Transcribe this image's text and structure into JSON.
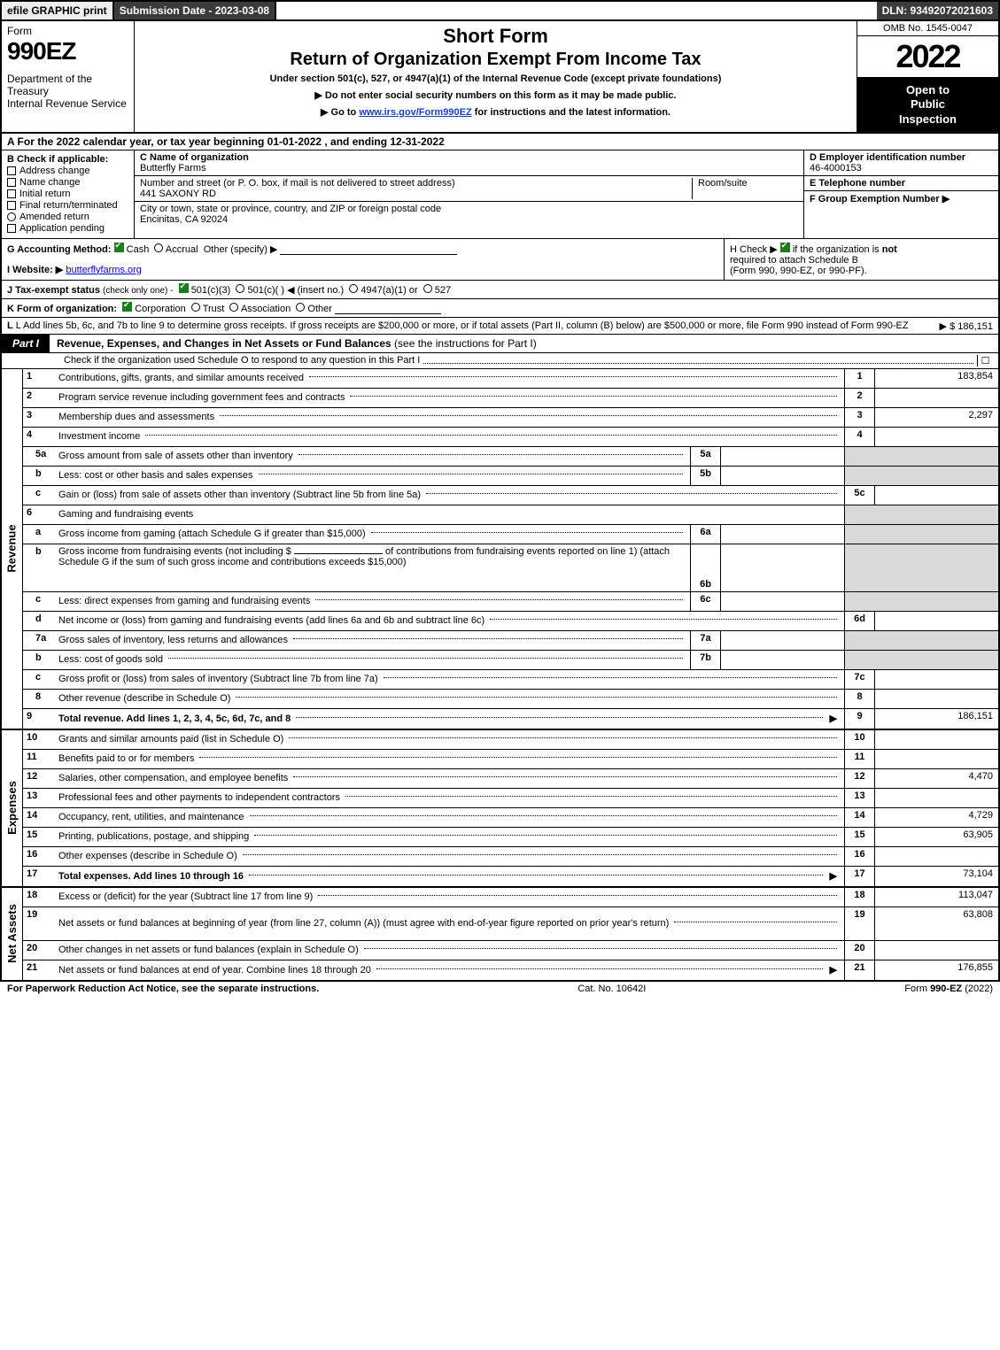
{
  "topbar": {
    "efile": "efile GRAPHIC print",
    "submission": "Submission Date - 2023-03-08",
    "dln": "DLN: 93492072021603"
  },
  "header": {
    "form_word": "Form",
    "form_no": "990EZ",
    "dept": "Department of the Treasury",
    "irs": "Internal Revenue Service",
    "short_form": "Short Form",
    "title_main": "Return of Organization Exempt From Income Tax",
    "subtitle": "Under section 501(c), 527, or 4947(a)(1) of the Internal Revenue Code (except private foundations)",
    "instr1": "▶ Do not enter social security numbers on this form as it may be made public.",
    "instr2_pre": "▶ Go to ",
    "instr2_link": "www.irs.gov/Form990EZ",
    "instr2_post": " for instructions and the latest information.",
    "omb": "OMB No. 1545-0047",
    "year": "2022",
    "open1": "Open to",
    "open2": "Public",
    "open3": "Inspection"
  },
  "row_a": "A  For the 2022 calendar year, or tax year beginning 01-01-2022 , and ending 12-31-2022",
  "col_b": {
    "title": "B  Check if applicable:",
    "opts": [
      "Address change",
      "Name change",
      "Initial return",
      "Final return/terminated",
      "Amended return",
      "Application pending"
    ]
  },
  "col_c": {
    "c_label": "C Name of organization",
    "org_name": "Butterfly Farms",
    "addr_label": "Number and street (or P. O. box, if mail is not delivered to street address)",
    "addr": "441 SAXONY RD",
    "room_label": "Room/suite",
    "city_label": "City or town, state or province, country, and ZIP or foreign postal code",
    "city": "Encinitas, CA  92024"
  },
  "col_def": {
    "d_label": "D Employer identification number",
    "ein": "46-4000153",
    "e_label": "E Telephone number",
    "f_label": "F Group Exemption Number   ▶"
  },
  "row_g": {
    "label": "G Accounting Method:",
    "cash": "Cash",
    "accrual": "Accrual",
    "other": "Other (specify) ▶"
  },
  "row_h": {
    "pre": "H  Check ▶ ",
    "post": " if the organization is ",
    "notword": "not",
    "line2": "required to attach Schedule B",
    "line3": "(Form 990, 990-EZ, or 990-PF)."
  },
  "row_i": {
    "label": "I Website: ▶",
    "site": "butterflyfarms.org"
  },
  "row_j": {
    "label": "J Tax-exempt status ",
    "small": "(check only one) -",
    "opt1": "501(c)(3)",
    "opt2": "501(c)(  ) ◀ (insert no.)",
    "opt3": "4947(a)(1) or",
    "opt4": "527"
  },
  "row_k": {
    "label": "K Form of organization:",
    "opts": [
      "Corporation",
      "Trust",
      "Association",
      "Other"
    ]
  },
  "row_l": {
    "text": "L Add lines 5b, 6c, and 7b to line 9 to determine gross receipts. If gross receipts are $200,000 or more, or if total assets (Part II, column (B) below) are $500,000 or more, file Form 990 instead of Form 990-EZ",
    "amount": "▶ $ 186,151"
  },
  "part1": {
    "tab": "Part I",
    "desc": "Revenue, Expenses, and Changes in Net Assets or Fund Balances ",
    "desc_light": "(see the instructions for Part I)",
    "sched_o": "Check if the organization used Schedule O to respond to any question in this Part I",
    "sched_o_box": "☐"
  },
  "revenue": {
    "side": "Revenue",
    "rows": [
      {
        "ln": "1",
        "txt": "Contributions, gifts, grants, and similar amounts received",
        "rn": "1",
        "rv": "183,854"
      },
      {
        "ln": "2",
        "txt": "Program service revenue including government fees and contracts",
        "rn": "2",
        "rv": ""
      },
      {
        "ln": "3",
        "txt": "Membership dues and assessments",
        "rn": "3",
        "rv": "2,297"
      },
      {
        "ln": "4",
        "txt": "Investment income",
        "rn": "4",
        "rv": ""
      }
    ],
    "r5a": {
      "ln": "5a",
      "txt": "Gross amount from sale of assets other than inventory",
      "mini": "5a"
    },
    "r5b": {
      "ln": "b",
      "txt": "Less: cost or other basis and sales expenses",
      "mini": "5b"
    },
    "r5c": {
      "ln": "c",
      "txt": "Gain or (loss) from sale of assets other than inventory (Subtract line 5b from line 5a)",
      "rn": "5c"
    },
    "r6": {
      "ln": "6",
      "txt": "Gaming and fundraising events"
    },
    "r6a": {
      "ln": "a",
      "txt": "Gross income from gaming (attach Schedule G if greater than $15,000)",
      "mini": "6a"
    },
    "r6b": {
      "ln": "b",
      "txt1": "Gross income from fundraising events (not including $",
      "txt2": "of contributions from fundraising events reported on line 1) (attach Schedule G if the sum of such gross income and contributions exceeds $15,000)",
      "mini": "6b"
    },
    "r6c": {
      "ln": "c",
      "txt": "Less: direct expenses from gaming and fundraising events",
      "mini": "6c"
    },
    "r6d": {
      "ln": "d",
      "txt": "Net income or (loss) from gaming and fundraising events (add lines 6a and 6b and subtract line 6c)",
      "rn": "6d"
    },
    "r7a": {
      "ln": "7a",
      "txt": "Gross sales of inventory, less returns and allowances",
      "mini": "7a"
    },
    "r7b": {
      "ln": "b",
      "txt": "Less: cost of goods sold",
      "mini": "7b"
    },
    "r7c": {
      "ln": "c",
      "txt": "Gross profit or (loss) from sales of inventory (Subtract line 7b from line 7a)",
      "rn": "7c"
    },
    "r8": {
      "ln": "8",
      "txt": "Other revenue (describe in Schedule O)",
      "rn": "8"
    },
    "r9": {
      "ln": "9",
      "txt": "Total revenue. Add lines 1, 2, 3, 4, 5c, 6d, 7c, and 8",
      "rn": "9",
      "rv": "186,151",
      "bold": true
    }
  },
  "expenses": {
    "side": "Expenses",
    "rows": [
      {
        "ln": "10",
        "txt": "Grants and similar amounts paid (list in Schedule O)",
        "rn": "10",
        "rv": ""
      },
      {
        "ln": "11",
        "txt": "Benefits paid to or for members",
        "rn": "11",
        "rv": ""
      },
      {
        "ln": "12",
        "txt": "Salaries, other compensation, and employee benefits",
        "rn": "12",
        "rv": "4,470"
      },
      {
        "ln": "13",
        "txt": "Professional fees and other payments to independent contractors",
        "rn": "13",
        "rv": ""
      },
      {
        "ln": "14",
        "txt": "Occupancy, rent, utilities, and maintenance",
        "rn": "14",
        "rv": "4,729"
      },
      {
        "ln": "15",
        "txt": "Printing, publications, postage, and shipping",
        "rn": "15",
        "rv": "63,905"
      },
      {
        "ln": "16",
        "txt": "Other expenses (describe in Schedule O)",
        "rn": "16",
        "rv": ""
      },
      {
        "ln": "17",
        "txt": "Total expenses. Add lines 10 through 16",
        "rn": "17",
        "rv": "73,104",
        "bold": true,
        "arrow": true
      }
    ]
  },
  "netassets": {
    "side": "Net Assets",
    "rows": [
      {
        "ln": "18",
        "txt": "Excess or (deficit) for the year (Subtract line 17 from line 9)",
        "rn": "18",
        "rv": "113,047"
      },
      {
        "ln": "19",
        "txt": "Net assets or fund balances at beginning of year (from line 27, column (A)) (must agree with end-of-year figure reported on prior year's return)",
        "rn": "19",
        "rv": "63,808",
        "tall": true
      },
      {
        "ln": "20",
        "txt": "Other changes in net assets or fund balances (explain in Schedule O)",
        "rn": "20",
        "rv": ""
      },
      {
        "ln": "21",
        "txt": "Net assets or fund balances at end of year. Combine lines 18 through 20",
        "rn": "21",
        "rv": "176,855",
        "arrow": true
      }
    ]
  },
  "footer": {
    "left": "For Paperwork Reduction Act Notice, see the separate instructions.",
    "mid": "Cat. No. 10642I",
    "right_pre": "Form ",
    "right_bold": "990-EZ",
    "right_post": " (2022)"
  },
  "colors": {
    "black": "#000000",
    "white": "#ffffff",
    "grey_bg": "#ededed",
    "dark_bar": "#3b3b3b",
    "shade": "#d9d9d9",
    "link": "#1a3fcf",
    "check_green": "#1a7f1a"
  }
}
